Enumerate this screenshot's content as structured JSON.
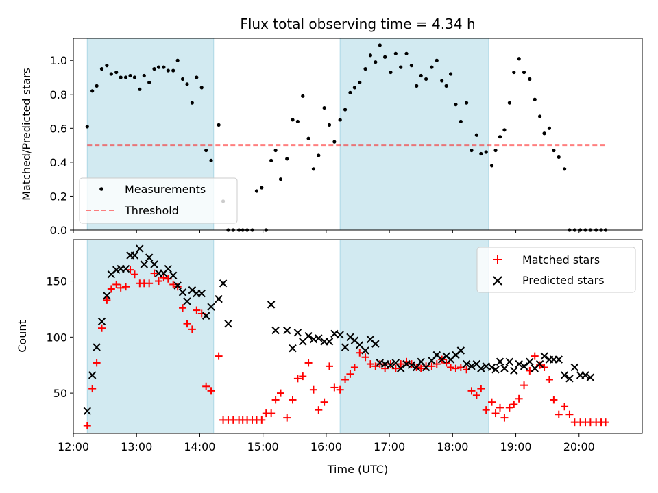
{
  "chart_data": [
    {
      "type": "scatter",
      "title": "Flux total observing time = 4.34 h",
      "xlabel": "",
      "ylabel": "Matched/Predicted stars",
      "x_unit": "hours UTC",
      "xlim": [
        12.0,
        21.0
      ],
      "ylim": [
        0,
        1.13
      ],
      "yticks": [
        0.0,
        0.2,
        0.4,
        0.6,
        0.8,
        1.0
      ],
      "ytick_labels": [
        "0.0",
        "0.2",
        "0.4",
        "0.6",
        "0.8",
        "1.0"
      ],
      "shaded_intervals": [
        [
          12.22,
          14.22
        ],
        [
          16.22,
          18.57
        ]
      ],
      "shade_color": "#add8e6",
      "legend": {
        "placement": "lower-left",
        "entries": [
          "Measurements",
          "Threshold"
        ]
      },
      "threshold": {
        "name": "Threshold",
        "y": 0.5,
        "x_range": [
          12.22,
          20.42
        ],
        "color": "#ff0000"
      },
      "series": [
        {
          "name": "Measurements",
          "marker": "dot",
          "color": "#000000",
          "x": [
            12.22,
            12.3,
            12.37,
            12.45,
            12.53,
            12.6,
            12.68,
            12.75,
            12.83,
            12.9,
            12.97,
            13.05,
            13.12,
            13.2,
            13.28,
            13.35,
            13.43,
            13.5,
            13.58,
            13.65,
            13.73,
            13.8,
            13.88,
            13.95,
            14.03,
            14.1,
            14.18,
            14.3,
            14.37,
            14.45,
            14.53,
            14.62,
            14.68,
            14.75,
            14.83,
            14.9,
            14.98,
            15.05,
            15.13,
            15.2,
            15.28,
            15.38,
            15.47,
            15.55,
            15.63,
            15.72,
            15.8,
            15.88,
            15.97,
            16.05,
            16.13,
            16.22,
            16.3,
            16.38,
            16.45,
            16.53,
            16.62,
            16.7,
            16.78,
            16.85,
            16.93,
            17.02,
            17.1,
            17.18,
            17.27,
            17.35,
            17.43,
            17.5,
            17.58,
            17.67,
            17.75,
            17.83,
            17.9,
            17.97,
            18.05,
            18.13,
            18.22,
            18.3,
            18.38,
            18.45,
            18.53,
            18.62,
            18.68,
            18.75,
            18.82,
            18.9,
            18.97,
            19.05,
            19.13,
            19.22,
            19.3,
            19.38,
            19.45,
            19.53,
            19.6,
            19.68,
            19.77,
            19.85,
            19.93,
            20.02,
            20.1,
            20.18,
            20.27,
            20.35,
            20.42
          ],
          "y": [
            0.61,
            0.82,
            0.85,
            0.95,
            0.97,
            0.92,
            0.93,
            0.9,
            0.9,
            0.91,
            0.9,
            0.83,
            0.91,
            0.87,
            0.95,
            0.96,
            0.96,
            0.94,
            0.94,
            1.0,
            0.89,
            0.86,
            0.75,
            0.9,
            0.84,
            0.47,
            0.41,
            0.62,
            0.17,
            0.0,
            0.0,
            0.0,
            0.0,
            0.0,
            0.0,
            0.23,
            0.25,
            0.0,
            0.41,
            0.47,
            0.3,
            0.42,
            0.65,
            0.64,
            0.79,
            0.54,
            0.36,
            0.44,
            0.72,
            0.62,
            0.52,
            0.65,
            0.71,
            0.81,
            0.84,
            0.87,
            0.95,
            1.03,
            0.99,
            1.09,
            1.02,
            0.93,
            1.04,
            0.96,
            1.04,
            0.97,
            0.85,
            0.91,
            0.89,
            0.96,
            1.0,
            0.88,
            0.85,
            0.92,
            0.74,
            0.64,
            0.75,
            0.47,
            0.56,
            0.45,
            0.46,
            0.38,
            0.47,
            0.55,
            0.59,
            0.75,
            0.93,
            1.01,
            0.93,
            0.89,
            0.77,
            0.67,
            0.57,
            0.6,
            0.47,
            0.43,
            0.36,
            0.0,
            0.0,
            0.0,
            0.0,
            0.0,
            0.0,
            0.0,
            0.0
          ]
        }
      ]
    },
    {
      "type": "scatter",
      "title": "",
      "xlabel": "Time (UTC)",
      "ylabel": "Count",
      "x_unit": "hours UTC",
      "xlim": [
        12.0,
        21.0
      ],
      "ylim": [
        14,
        187
      ],
      "xticks": [
        12,
        13,
        14,
        15,
        16,
        17,
        18,
        19,
        20
      ],
      "xtick_labels": [
        "12:00",
        "13:00",
        "14:00",
        "15:00",
        "16:00",
        "17:00",
        "18:00",
        "19:00",
        "20:00"
      ],
      "yticks": [
        50,
        100,
        150
      ],
      "ytick_labels": [
        "50",
        "100",
        "150"
      ],
      "shaded_intervals": [
        [
          12.22,
          14.22
        ],
        [
          16.22,
          18.57
        ]
      ],
      "shade_color": "#add8e6",
      "legend": {
        "placement": "upper-right",
        "entries": [
          "Matched stars",
          "Predicted stars"
        ]
      },
      "series": [
        {
          "name": "Matched stars",
          "marker": "plus",
          "color": "#ff0000",
          "x": [
            12.22,
            12.3,
            12.37,
            12.45,
            12.53,
            12.6,
            12.68,
            12.75,
            12.83,
            12.9,
            12.97,
            13.05,
            13.12,
            13.2,
            13.28,
            13.35,
            13.43,
            13.5,
            13.58,
            13.65,
            13.73,
            13.8,
            13.88,
            13.95,
            14.03,
            14.1,
            14.18,
            14.3,
            14.37,
            14.45,
            14.53,
            14.62,
            14.68,
            14.75,
            14.83,
            14.9,
            14.98,
            15.05,
            15.13,
            15.2,
            15.28,
            15.38,
            15.47,
            15.55,
            15.63,
            15.72,
            15.8,
            15.88,
            15.97,
            16.05,
            16.13,
            16.22,
            16.3,
            16.38,
            16.45,
            16.53,
            16.62,
            16.7,
            16.78,
            16.85,
            16.93,
            17.02,
            17.1,
            17.18,
            17.27,
            17.35,
            17.43,
            17.5,
            17.58,
            17.67,
            17.75,
            17.83,
            17.9,
            17.97,
            18.05,
            18.13,
            18.22,
            18.3,
            18.38,
            18.45,
            18.53,
            18.62,
            18.68,
            18.75,
            18.82,
            18.9,
            18.97,
            19.05,
            19.13,
            19.22,
            19.3,
            19.38,
            19.45,
            19.53,
            19.6,
            19.68,
            19.77,
            19.85,
            19.93,
            20.02,
            20.1,
            20.18,
            20.27,
            20.35,
            20.42
          ],
          "y": [
            21,
            54,
            77,
            108,
            133,
            143,
            147,
            144,
            145,
            160,
            156,
            148,
            148,
            148,
            157,
            150,
            153,
            152,
            147,
            145,
            126,
            112,
            107,
            124,
            121,
            56,
            52,
            83,
            26,
            26,
            26,
            26,
            26,
            26,
            26,
            26,
            26,
            32,
            32,
            44,
            50,
            28,
            44,
            63,
            65,
            77,
            53,
            35,
            42,
            74,
            55,
            53,
            62,
            67,
            73,
            86,
            82,
            76,
            74,
            76,
            72,
            76,
            72,
            76,
            78,
            76,
            73,
            72,
            74,
            74,
            76,
            80,
            77,
            73,
            72,
            73,
            71,
            52,
            48,
            54,
            35,
            42,
            32,
            37,
            28,
            37,
            40,
            45,
            57,
            70,
            83,
            75,
            73,
            62,
            44,
            31,
            38,
            31,
            24,
            24,
            24,
            24,
            24,
            24,
            24
          ]
        },
        {
          "name": "Predicted stars",
          "marker": "x",
          "color": "#000000",
          "x": [
            12.22,
            12.3,
            12.37,
            12.45,
            12.53,
            12.6,
            12.68,
            12.75,
            12.83,
            12.9,
            12.97,
            13.05,
            13.12,
            13.2,
            13.28,
            13.35,
            13.43,
            13.5,
            13.58,
            13.65,
            13.73,
            13.8,
            13.88,
            13.95,
            14.03,
            14.1,
            14.18,
            14.3,
            14.37,
            14.45,
            15.13,
            15.2,
            15.38,
            15.47,
            15.55,
            15.63,
            15.72,
            15.8,
            15.88,
            15.97,
            16.05,
            16.13,
            16.22,
            16.3,
            16.38,
            16.45,
            16.53,
            16.62,
            16.7,
            16.78,
            16.85,
            16.93,
            17.02,
            17.1,
            17.18,
            17.27,
            17.35,
            17.43,
            17.5,
            17.58,
            17.67,
            17.75,
            17.83,
            17.9,
            17.97,
            18.05,
            18.13,
            18.22,
            18.3,
            18.38,
            18.45,
            18.53,
            18.62,
            18.68,
            18.75,
            18.82,
            18.9,
            18.97,
            19.05,
            19.13,
            19.22,
            19.3,
            19.38,
            19.45,
            19.53,
            19.6,
            19.68,
            19.77,
            19.85,
            19.93,
            20.02,
            20.1,
            20.18
          ],
          "y": [
            34,
            66,
            91,
            114,
            137,
            156,
            160,
            161,
            161,
            173,
            173,
            179,
            165,
            171,
            165,
            157,
            157,
            161,
            155,
            146,
            140,
            132,
            142,
            139,
            139,
            119,
            127,
            134,
            148,
            112,
            129,
            106,
            106,
            90,
            104,
            96,
            101,
            98,
            99,
            96,
            96,
            103,
            102,
            91,
            100,
            97,
            93,
            88,
            98,
            94,
            77,
            76,
            75,
            77,
            72,
            76,
            75,
            73,
            78,
            73,
            79,
            84,
            80,
            83,
            80,
            84,
            88,
            76,
            74,
            76,
            72,
            74,
            73,
            71,
            78,
            72,
            78,
            70,
            76,
            74,
            78,
            72,
            76,
            83,
            80,
            80,
            80,
            66,
            63,
            73,
            66,
            66,
            64
          ]
        }
      ]
    }
  ]
}
